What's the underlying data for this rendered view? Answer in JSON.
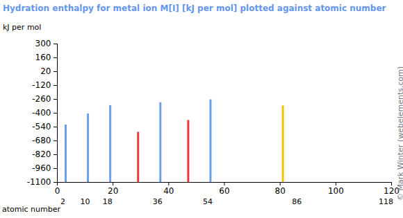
{
  "chart_data": {
    "type": "bar",
    "title": "Hydration enthalpy for metal ion M[I] [kJ per mol] plotted against atomic number",
    "ylabel": "kJ per mol",
    "xlabel": "atomic number",
    "caption": "© Mark Winter (webelements.com)",
    "x": [
      3,
      11,
      19,
      29,
      37,
      47,
      55,
      81
    ],
    "values": [
      -519,
      -406,
      -322,
      -593,
      -293,
      -473,
      -264,
      -326
    ],
    "colors": [
      "#6f9ee8",
      "#6f9ee8",
      "#6f9ee8",
      "#e8383d",
      "#6f9ee8",
      "#e8383d",
      "#6f9ee8",
      "#f5c400"
    ],
    "xlim": [
      0,
      120
    ],
    "xticks": [
      0,
      20,
      40,
      60,
      80,
      100,
      120
    ],
    "x2ticks": [
      2,
      10,
      18,
      36,
      54,
      86,
      118
    ],
    "ylim": [
      -1100,
      300
    ],
    "yticks": [
      300,
      160,
      20,
      -120,
      -260,
      -400,
      -540,
      -680,
      -820,
      -960,
      -1100
    ],
    "grid": false
  }
}
